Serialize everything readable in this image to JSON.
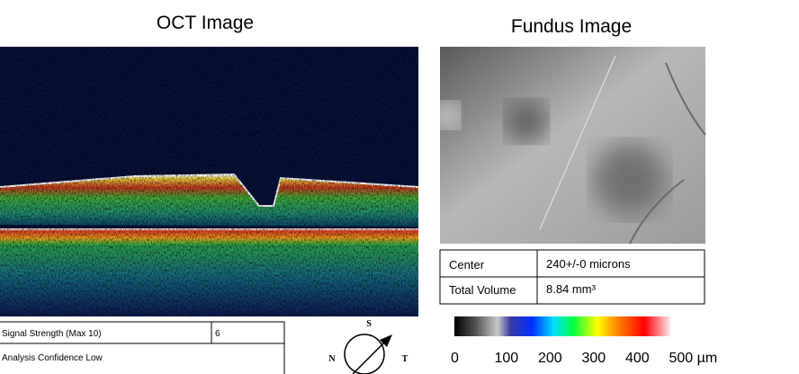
{
  "oct": {
    "title": "OCT Image"
  },
  "fundus": {
    "title": "Fundus Image"
  },
  "measurements": {
    "rows": [
      [
        "Center",
        "240+/-0 microns"
      ],
      [
        "Total Volume",
        "8.84 mm³"
      ]
    ]
  },
  "signal": {
    "rows": [
      [
        "Signal Strength (Max 10)",
        "6"
      ],
      [
        "Analysis Confidence Low"
      ]
    ]
  },
  "compass": {
    "superior": "S",
    "nasal": "N",
    "temporal": "T"
  },
  "color_scale": {
    "ticks": [
      "0",
      "100",
      "200",
      "300",
      "400",
      "500 µm"
    ]
  }
}
